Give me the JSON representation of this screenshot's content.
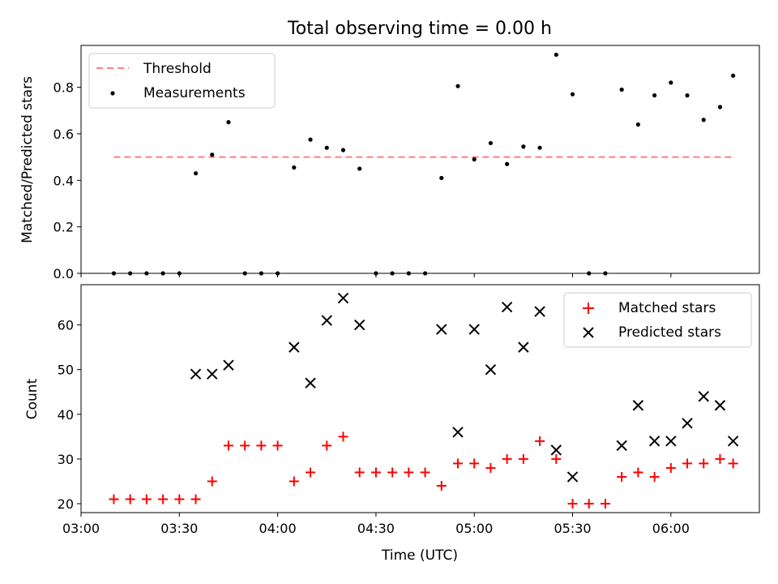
{
  "title": "Total observing time = 0.00 h",
  "chart_data": [
    {
      "type": "scatter",
      "ylabel": "Matched/Predicted stars",
      "xlabel": "",
      "ylim": [
        0,
        0.98
      ],
      "yticks": [
        0.0,
        0.2,
        0.4,
        0.6,
        0.8
      ],
      "ytick_labels": [
        "0.0",
        "0.2",
        "0.4",
        "0.6",
        "0.8"
      ],
      "legend_position": "upper-left",
      "threshold": {
        "name": "Threshold",
        "value": 0.5,
        "x_start": "03:10",
        "x_end": "06:19",
        "color": "#ff8080",
        "style": "dashed"
      },
      "series": [
        {
          "name": "Measurements",
          "color": "#000000",
          "marker": "dot",
          "x": [
            "03:10",
            "03:15",
            "03:20",
            "03:25",
            "03:30",
            "03:35",
            "03:40",
            "03:45",
            "03:50",
            "03:55",
            "04:00",
            "04:05",
            "04:10",
            "04:15",
            "04:20",
            "04:25",
            "04:30",
            "04:35",
            "04:40",
            "04:45",
            "04:50",
            "04:55",
            "05:00",
            "05:05",
            "05:10",
            "05:15",
            "05:20",
            "05:25",
            "05:30",
            "05:35",
            "05:40",
            "05:45",
            "05:50",
            "05:55",
            "06:00",
            "06:05",
            "06:10",
            "06:15",
            "06:19"
          ],
          "values": [
            0.0,
            0.0,
            0.0,
            0.0,
            0.0,
            0.43,
            0.51,
            0.65,
            0.0,
            0.0,
            0.0,
            0.455,
            0.575,
            0.54,
            0.53,
            0.45,
            0.0,
            0.0,
            0.0,
            0.0,
            0.41,
            0.805,
            0.49,
            0.56,
            0.47,
            0.545,
            0.54,
            0.94,
            0.77,
            0.0,
            0.0,
            0.79,
            0.64,
            0.765,
            0.82,
            0.765,
            0.66,
            0.715,
            0.85
          ]
        }
      ]
    },
    {
      "type": "scatter",
      "ylabel": "Count",
      "xlabel": "Time (UTC)",
      "ylim": [
        18,
        69
      ],
      "yticks": [
        20,
        30,
        40,
        50,
        60
      ],
      "ytick_labels": [
        "20",
        "30",
        "40",
        "50",
        "60"
      ],
      "xlim": [
        "03:00",
        "06:27"
      ],
      "xticks": [
        "03:00",
        "03:30",
        "04:00",
        "04:30",
        "05:00",
        "05:30",
        "06:00"
      ],
      "xtick_labels": [
        "03:00",
        "03:30",
        "04:00",
        "04:30",
        "05:00",
        "05:30",
        "06:00"
      ],
      "legend_position": "upper-right",
      "series": [
        {
          "name": "Matched stars",
          "color": "#ff0000",
          "marker": "plus",
          "x": [
            "03:10",
            "03:15",
            "03:20",
            "03:25",
            "03:30",
            "03:35",
            "03:40",
            "03:45",
            "03:50",
            "03:55",
            "04:00",
            "04:05",
            "04:10",
            "04:15",
            "04:20",
            "04:25",
            "04:30",
            "04:35",
            "04:40",
            "04:45",
            "04:50",
            "04:55",
            "05:00",
            "05:05",
            "05:10",
            "05:15",
            "05:20",
            "05:25",
            "05:30",
            "05:35",
            "05:40",
            "05:45",
            "05:50",
            "05:55",
            "06:00",
            "06:05",
            "06:10",
            "06:15",
            "06:19"
          ],
          "values": [
            21,
            21,
            21,
            21,
            21,
            21,
            25,
            33,
            33,
            33,
            33,
            25,
            27,
            33,
            35,
            27,
            27,
            27,
            27,
            27,
            24,
            29,
            29,
            28,
            30,
            30,
            34,
            30,
            20,
            20,
            20,
            26,
            27,
            26,
            28,
            29,
            29,
            30,
            29
          ]
        },
        {
          "name": "Predicted stars",
          "color": "#000000",
          "marker": "x",
          "x": [
            "03:35",
            "03:40",
            "03:45",
            "04:05",
            "04:10",
            "04:15",
            "04:20",
            "04:25",
            "04:50",
            "04:55",
            "05:00",
            "05:05",
            "05:10",
            "05:15",
            "05:20",
            "05:25",
            "05:30",
            "05:45",
            "05:50",
            "05:55",
            "06:00",
            "06:05",
            "06:10",
            "06:15",
            "06:19"
          ],
          "values": [
            49,
            49,
            51,
            55,
            47,
            61,
            66,
            60,
            59,
            36,
            59,
            50,
            64,
            55,
            63,
            32,
            26,
            33,
            42,
            34,
            34,
            38,
            44,
            42,
            34
          ]
        }
      ]
    }
  ]
}
